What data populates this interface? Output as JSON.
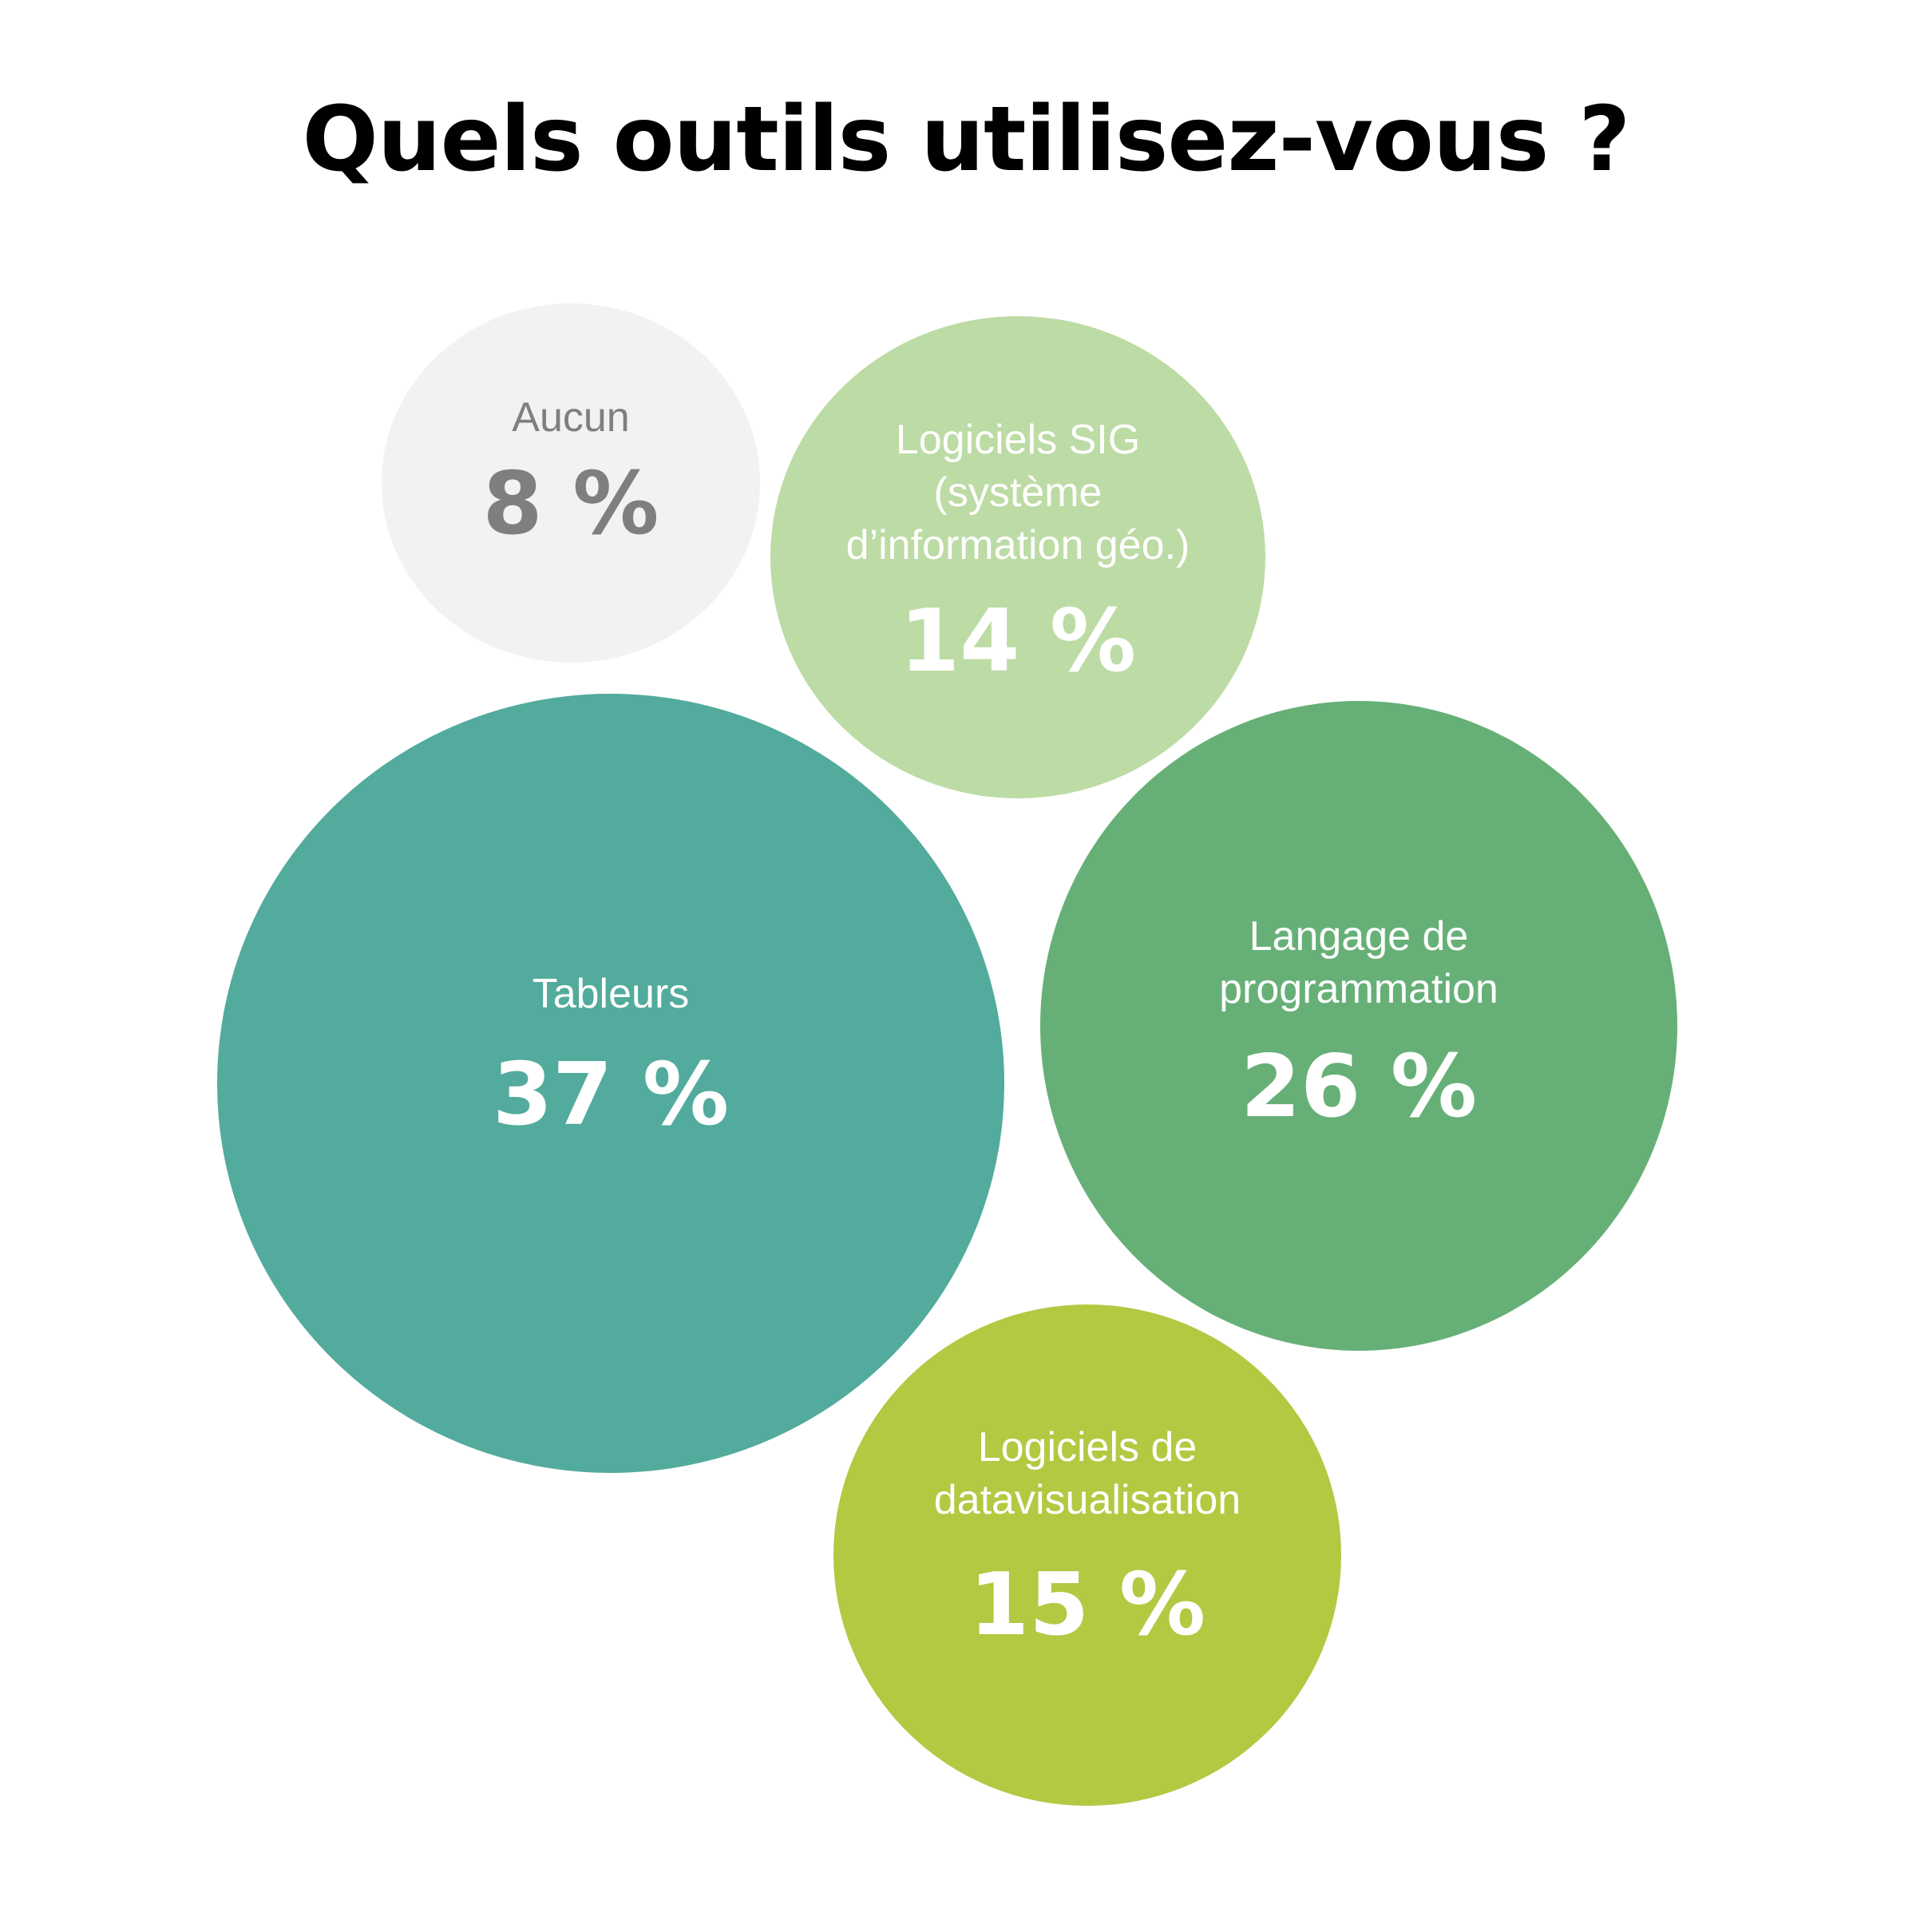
{
  "chart_data": {
    "type": "bubble",
    "title": "Quels outils utilisez-vous ?",
    "bubbles": [
      {
        "label_lines": [
          "Aucun"
        ],
        "value": 8,
        "value_text": "8 %",
        "color": "#f2f2f2",
        "text_color": "#7f7f7f"
      },
      {
        "label_lines": [
          "Logiciels SIG",
          "(système",
          "d’information géo.)"
        ],
        "value": 14,
        "value_text": "14 %",
        "color": "#bddba4",
        "text_color": "#ffffff"
      },
      {
        "label_lines": [
          "Tableurs"
        ],
        "value": 37,
        "value_text": "37 %",
        "color": "#52ab9c",
        "text_color": "#ffffff"
      },
      {
        "label_lines": [
          "Langage de",
          "programmation"
        ],
        "value": 26,
        "value_text": "26 %",
        "color": "#66b077",
        "text_color": "#ffffff"
      },
      {
        "label_lines": [
          "Logiciels de",
          "datavisualisation"
        ],
        "value": 15,
        "value_text": "15 %",
        "color": "#b2c942",
        "text_color": "#ffffff"
      }
    ]
  }
}
